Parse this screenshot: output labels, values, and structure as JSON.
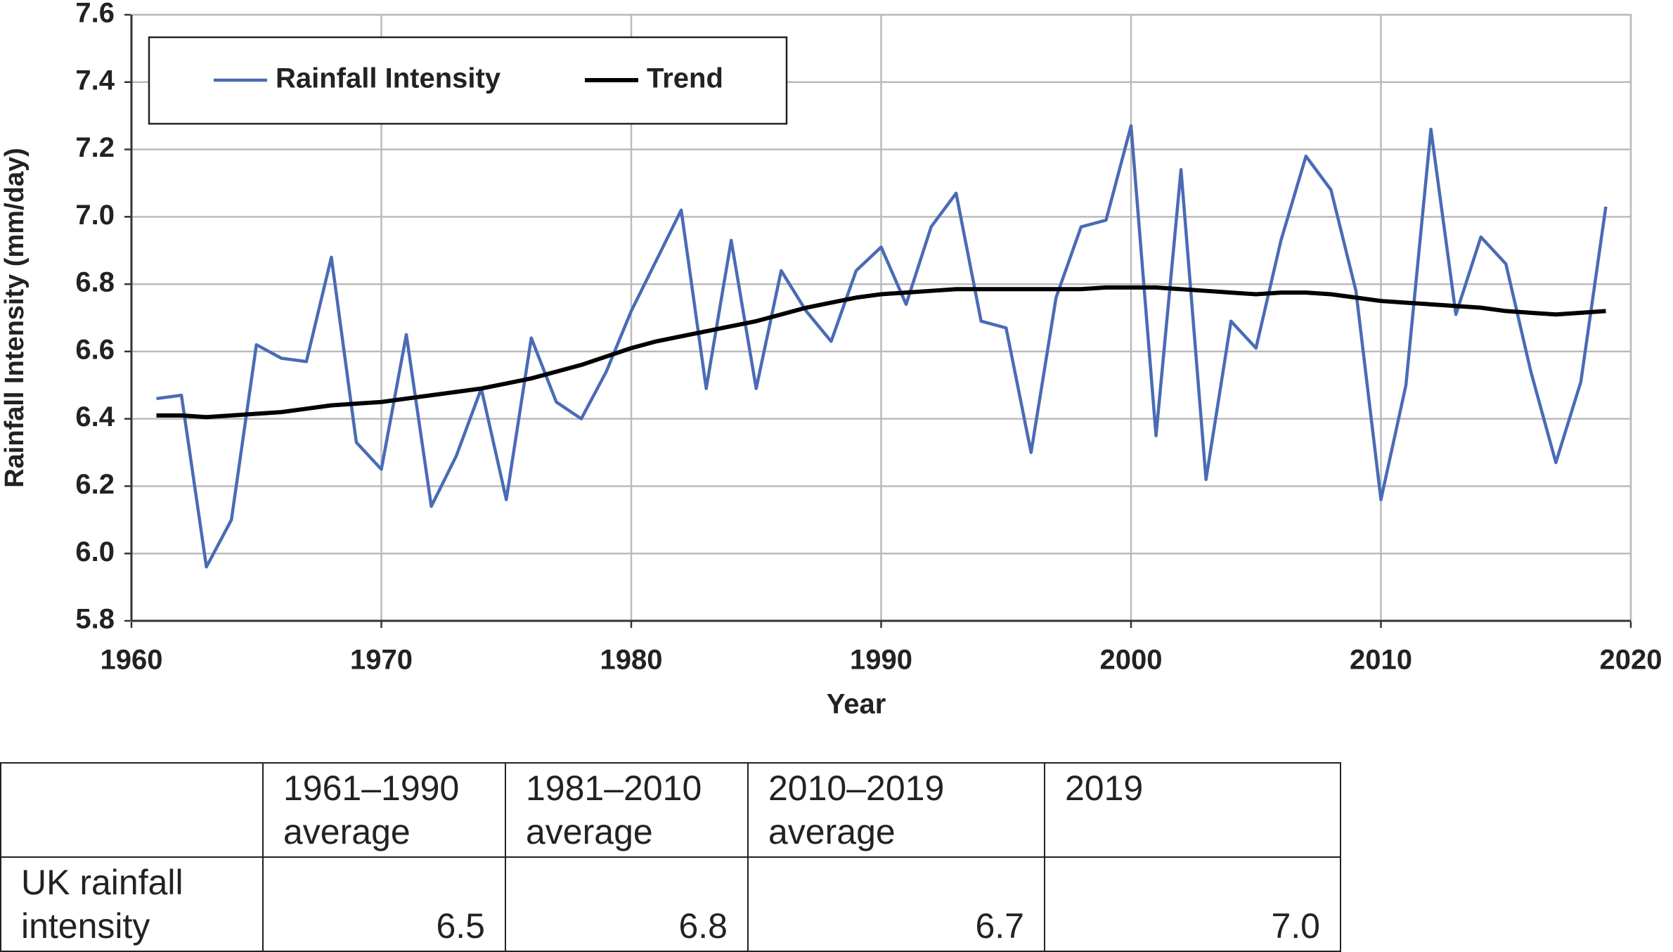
{
  "chart_data": {
    "type": "line",
    "x_label": "Year",
    "y_label": "Rainfall Intensity (mm/day)",
    "x": [
      1961,
      1962,
      1963,
      1964,
      1965,
      1966,
      1967,
      1968,
      1969,
      1970,
      1971,
      1972,
      1973,
      1974,
      1975,
      1976,
      1977,
      1978,
      1979,
      1980,
      1981,
      1982,
      1983,
      1984,
      1985,
      1986,
      1987,
      1988,
      1989,
      1990,
      1991,
      1992,
      1993,
      1994,
      1995,
      1996,
      1997,
      1998,
      1999,
      2000,
      2001,
      2002,
      2003,
      2004,
      2005,
      2006,
      2007,
      2008,
      2009,
      2010,
      2011,
      2012,
      2013,
      2014,
      2015,
      2016,
      2017,
      2018,
      2019
    ],
    "series": [
      {
        "name": "Rainfall Intensity",
        "color": "#4a6bb5",
        "values": [
          6.46,
          6.47,
          5.96,
          6.1,
          6.62,
          6.58,
          6.57,
          6.88,
          6.33,
          6.25,
          6.65,
          6.14,
          6.29,
          6.49,
          6.16,
          6.64,
          6.45,
          6.4,
          6.54,
          6.72,
          6.87,
          7.02,
          6.49,
          6.93,
          6.49,
          6.84,
          6.72,
          6.63,
          6.84,
          6.91,
          6.74,
          6.97,
          7.07,
          6.69,
          6.67,
          6.3,
          6.76,
          6.97,
          6.99,
          7.27,
          6.35,
          7.14,
          6.22,
          6.69,
          6.61,
          6.93,
          7.18,
          7.08,
          6.78,
          6.16,
          6.5,
          7.26,
          6.71,
          6.94,
          6.86,
          6.54,
          6.27,
          6.51,
          7.03
        ]
      },
      {
        "name": "Trend",
        "color": "#000000",
        "values": [
          6.41,
          6.41,
          6.405,
          6.41,
          6.415,
          6.42,
          6.43,
          6.44,
          6.445,
          6.45,
          6.46,
          6.47,
          6.48,
          6.49,
          6.505,
          6.52,
          6.54,
          6.56,
          6.585,
          6.61,
          6.63,
          6.645,
          6.66,
          6.675,
          6.69,
          6.71,
          6.73,
          6.745,
          6.76,
          6.77,
          6.775,
          6.78,
          6.785,
          6.785,
          6.785,
          6.785,
          6.785,
          6.785,
          6.79,
          6.79,
          6.79,
          6.785,
          6.78,
          6.775,
          6.77,
          6.775,
          6.775,
          6.77,
          6.76,
          6.75,
          6.745,
          6.74,
          6.735,
          6.73,
          6.72,
          6.715,
          6.71,
          6.715,
          6.72
        ]
      }
    ],
    "xlim": [
      1960,
      2020
    ],
    "xticks": [
      1960,
      1970,
      1980,
      1990,
      2000,
      2010,
      2020
    ],
    "ylim": [
      5.8,
      7.6
    ],
    "yticks": [
      5.8,
      {
        "value": 6,
        "label": "6.0"
      },
      6.2,
      6.4,
      6.6,
      6.8,
      {
        "value": 7,
        "label": "7.0"
      },
      7.2,
      7.4,
      7.6
    ],
    "grid": true,
    "legend": "upper left"
  },
  "table": {
    "header": [
      "1961–1990 average",
      "1981–2010 average",
      "2010–2019 average",
      "2019"
    ],
    "rows": [
      {
        "label": "UK rainfall intensity",
        "cells": [
          "6.5",
          "6.8",
          "6.7",
          "7.0"
        ]
      }
    ]
  }
}
